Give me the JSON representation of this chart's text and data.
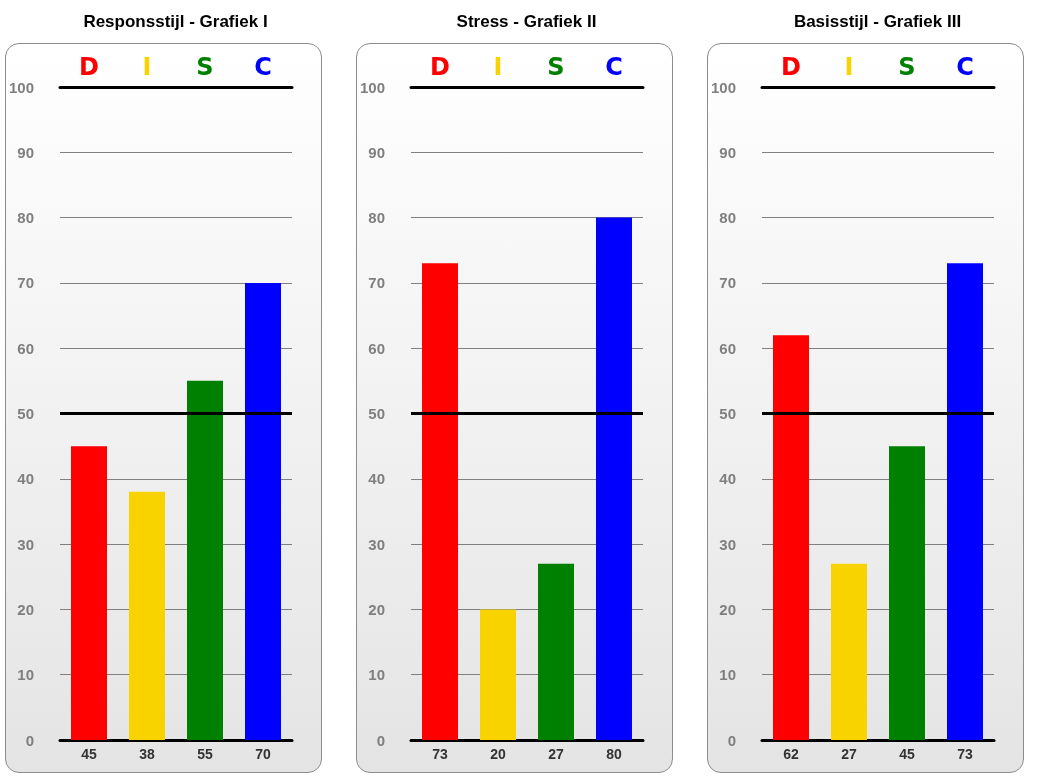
{
  "chart_data": [
    {
      "type": "bar",
      "title": "Responsstijl - Grafiek I",
      "categories": [
        "D",
        "I",
        "S",
        "C"
      ],
      "values": [
        45,
        38,
        55,
        70
      ],
      "colors": [
        "#ff0000",
        "#f8d300",
        "#008000",
        "#0000ff"
      ],
      "ylim": [
        0,
        100
      ],
      "yticks": [
        0,
        10,
        20,
        30,
        40,
        50,
        60,
        70,
        80,
        90,
        100
      ],
      "grid": "y",
      "data_labels": true,
      "ref_lines": [
        {
          "axis": "y",
          "value": 50,
          "color": "#000000"
        }
      ]
    },
    {
      "type": "bar",
      "title": "Stress - Grafiek II",
      "categories": [
        "D",
        "I",
        "S",
        "C"
      ],
      "values": [
        73,
        20,
        27,
        80
      ],
      "colors": [
        "#ff0000",
        "#f8d300",
        "#008000",
        "#0000ff"
      ],
      "ylim": [
        0,
        100
      ],
      "yticks": [
        0,
        10,
        20,
        30,
        40,
        50,
        60,
        70,
        80,
        90,
        100
      ],
      "grid": "y",
      "data_labels": true,
      "ref_lines": [
        {
          "axis": "y",
          "value": 50,
          "color": "#000000"
        }
      ]
    },
    {
      "type": "bar",
      "title": "Basisstijl - Grafiek III",
      "categories": [
        "D",
        "I",
        "S",
        "C"
      ],
      "values": [
        62,
        27,
        45,
        73
      ],
      "colors": [
        "#ff0000",
        "#f8d300",
        "#008000",
        "#0000ff"
      ],
      "ylim": [
        0,
        100
      ],
      "yticks": [
        0,
        10,
        20,
        30,
        40,
        50,
        60,
        70,
        80,
        90,
        100
      ],
      "grid": "y",
      "data_labels": true,
      "ref_lines": [
        {
          "axis": "y",
          "value": 50,
          "color": "#000000"
        }
      ]
    }
  ]
}
